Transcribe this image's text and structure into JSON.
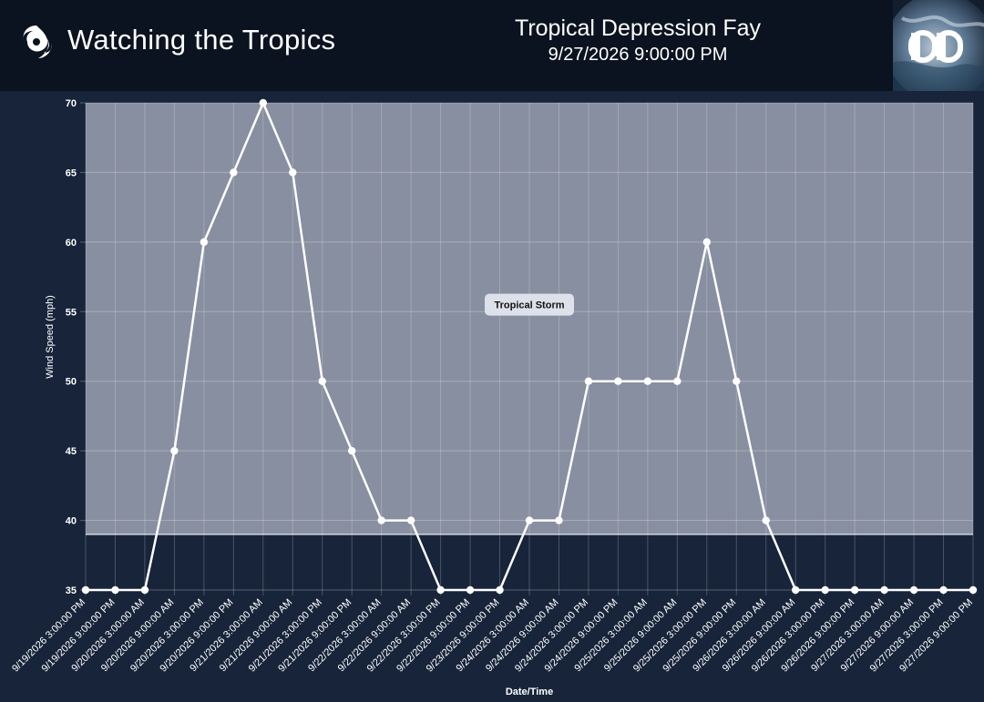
{
  "header": {
    "app_title": "Watching the Tropics",
    "storm_name": "Tropical Depression Fay",
    "timestamp": "9/27/2026 9:00:00 PM",
    "brand_icon": "hurricane-icon",
    "logo_icon": "dd-logo-icon"
  },
  "colors": {
    "header_bg": "#0b1320",
    "page_bg": "#17243a",
    "storm_band": "#888fa0",
    "line": "#ffffff"
  },
  "chart_data": {
    "type": "line",
    "xlabel": "Date/Time",
    "ylabel": "Wind Speed (mph)",
    "ylim": [
      35,
      70
    ],
    "yticks": [
      35,
      40,
      45,
      50,
      55,
      60,
      65,
      70
    ],
    "grid": true,
    "categories": [
      "9/19/2026 3:00:00 PM",
      "9/19/2026 9:00:00 PM",
      "9/20/2026 3:00:00 AM",
      "9/20/2026 9:00:00 AM",
      "9/20/2026 3:00:00 PM",
      "9/20/2026 9:00:00 PM",
      "9/21/2026 3:00:00 AM",
      "9/21/2026 9:00:00 AM",
      "9/21/2026 3:00:00 PM",
      "9/21/2026 9:00:00 PM",
      "9/22/2026 3:00:00 AM",
      "9/22/2026 9:00:00 AM",
      "9/22/2026 3:00:00 PM",
      "9/22/2026 9:00:00 PM",
      "9/23/2026 9:00:00 PM",
      "9/24/2026 3:00:00 AM",
      "9/24/2026 9:00:00 AM",
      "9/24/2026 3:00:00 PM",
      "9/24/2026 9:00:00 PM",
      "9/25/2026 3:00:00 AM",
      "9/25/2026 9:00:00 AM",
      "9/25/2026 3:00:00 PM",
      "9/25/2026 9:00:00 PM",
      "9/26/2026 3:00:00 AM",
      "9/26/2026 9:00:00 AM",
      "9/26/2026 3:00:00 PM",
      "9/26/2026 9:00:00 PM",
      "9/27/2026 3:00:00 AM",
      "9/27/2026 9:00:00 AM",
      "9/27/2026 3:00:00 PM",
      "9/27/2026 9:00:00 PM"
    ],
    "series": [
      {
        "values": [
          35,
          35,
          35,
          45,
          60,
          65,
          70,
          65,
          50,
          45,
          40,
          40,
          35,
          35,
          35,
          40,
          40,
          50,
          50,
          50,
          50,
          60,
          50,
          40,
          35,
          35,
          35,
          35,
          35,
          35,
          35
        ]
      }
    ],
    "bands": [
      {
        "label": "Tropical Storm",
        "from": 39,
        "to": 70,
        "color": "#888fa0"
      }
    ]
  }
}
